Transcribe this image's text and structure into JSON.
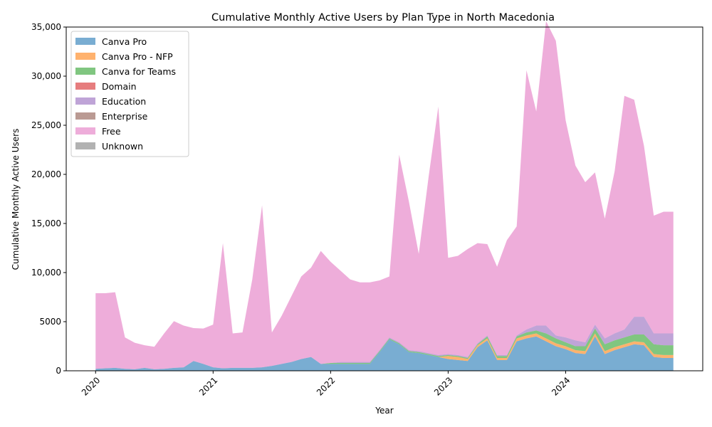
{
  "chart_data": {
    "type": "area",
    "stacked": true,
    "title": "Cumulative Monthly Active Users by Plan Type in North Macedonia",
    "xlabel": "Year",
    "ylabel": "Cumulative Monthly Active Users",
    "ylim": [
      0,
      35000
    ],
    "y_ticks": [
      0,
      5000,
      10000,
      15000,
      20000,
      25000,
      30000,
      35000
    ],
    "y_tick_labels": [
      "0",
      "5000",
      "10,000",
      "15,000",
      "20,000",
      "25,000",
      "30,000",
      "35,000"
    ],
    "x_ticks": [
      "2020-01",
      "2021-01",
      "2022-01",
      "2023-01",
      "2024-01"
    ],
    "x_tick_labels": [
      "2020",
      "2021",
      "2022",
      "2023",
      "2024"
    ],
    "xlim": [
      "2019-10",
      "2025-03"
    ],
    "legend_position": "upper-left",
    "grid": false,
    "x": [
      "2020-01",
      "2020-02",
      "2020-03",
      "2020-04",
      "2020-05",
      "2020-06",
      "2020-07",
      "2020-08",
      "2020-09",
      "2020-10",
      "2020-11",
      "2020-12",
      "2021-01",
      "2021-02",
      "2021-03",
      "2021-04",
      "2021-05",
      "2021-06",
      "2021-07",
      "2021-08",
      "2021-09",
      "2021-10",
      "2021-11",
      "2021-12",
      "2022-01",
      "2022-02",
      "2022-03",
      "2022-04",
      "2022-05",
      "2022-06",
      "2022-07",
      "2022-08",
      "2022-09",
      "2022-10",
      "2022-11",
      "2022-12",
      "2023-01",
      "2023-02",
      "2023-03",
      "2023-04",
      "2023-05",
      "2023-06",
      "2023-07",
      "2023-08",
      "2023-09",
      "2023-10",
      "2023-11",
      "2023-12",
      "2024-01",
      "2024-02",
      "2024-03",
      "2024-04",
      "2024-05",
      "2024-06",
      "2024-07",
      "2024-08",
      "2024-09",
      "2024-10",
      "2024-11",
      "2024-12"
    ],
    "series": [
      {
        "name": "Canva Pro",
        "color": "#1f77b4",
        "values": [
          200,
          250,
          300,
          200,
          150,
          300,
          150,
          200,
          300,
          350,
          1000,
          700,
          350,
          250,
          300,
          300,
          300,
          350,
          500,
          700,
          900,
          1200,
          1400,
          700,
          700,
          700,
          700,
          700,
          700,
          1900,
          3200,
          2700,
          1900,
          1800,
          1600,
          1400,
          1200,
          1100,
          1000,
          2400,
          3100,
          1100,
          1100,
          3000,
          3300,
          3500,
          3000,
          2500,
          2200,
          1800,
          1700,
          3500,
          1700,
          2100,
          2400,
          2700,
          2600,
          1400,
          1300,
          1300
        ]
      },
      {
        "name": "Canva Pro - NFP",
        "color": "#ff7f0e",
        "values": [
          0,
          0,
          0,
          0,
          0,
          0,
          0,
          0,
          0,
          0,
          0,
          0,
          0,
          0,
          0,
          0,
          0,
          0,
          0,
          0,
          0,
          0,
          0,
          0,
          0,
          0,
          0,
          0,
          0,
          0,
          0,
          0,
          0,
          0,
          0,
          0,
          300,
          300,
          200,
          200,
          200,
          200,
          200,
          300,
          300,
          300,
          300,
          300,
          300,
          300,
          300,
          300,
          300,
          300,
          300,
          300,
          300,
          300,
          300,
          300
        ]
      },
      {
        "name": "Canva for Teams",
        "color": "#2ca02c",
        "values": [
          0,
          0,
          0,
          0,
          0,
          0,
          0,
          0,
          0,
          0,
          0,
          0,
          0,
          0,
          0,
          0,
          0,
          0,
          0,
          0,
          0,
          0,
          0,
          0,
          100,
          100,
          100,
          100,
          100,
          100,
          100,
          100,
          100,
          100,
          100,
          100,
          100,
          100,
          100,
          100,
          200,
          200,
          200,
          200,
          300,
          300,
          500,
          500,
          400,
          400,
          500,
          500,
          700,
          700,
          700,
          700,
          800,
          1000,
          1000,
          1000
        ]
      },
      {
        "name": "Domain",
        "color": "#d62728",
        "values": [
          0,
          0,
          0,
          0,
          0,
          0,
          0,
          0,
          0,
          0,
          0,
          0,
          0,
          0,
          0,
          0,
          0,
          0,
          0,
          0,
          0,
          0,
          0,
          0,
          0,
          0,
          0,
          0,
          0,
          0,
          0,
          0,
          0,
          0,
          0,
          0,
          0,
          0,
          0,
          0,
          0,
          0,
          0,
          0,
          0,
          0,
          0,
          0,
          0,
          0,
          0,
          0,
          0,
          0,
          0,
          0,
          0,
          0,
          0,
          0
        ]
      },
      {
        "name": "Education",
        "color": "#9467bd",
        "values": [
          0,
          0,
          0,
          0,
          0,
          0,
          0,
          0,
          0,
          0,
          0,
          0,
          0,
          0,
          0,
          0,
          0,
          0,
          0,
          0,
          0,
          0,
          0,
          0,
          0,
          100,
          100,
          100,
          100,
          100,
          100,
          100,
          100,
          100,
          100,
          100,
          100,
          100,
          100,
          100,
          100,
          100,
          100,
          100,
          300,
          500,
          800,
          300,
          500,
          600,
          400,
          400,
          600,
          700,
          800,
          1800,
          1800,
          1100,
          1200,
          1200
        ]
      },
      {
        "name": "Enterprise",
        "color": "#8c564b",
        "values": [
          0,
          0,
          0,
          0,
          0,
          0,
          0,
          0,
          0,
          0,
          0,
          0,
          0,
          0,
          0,
          0,
          0,
          0,
          0,
          0,
          0,
          0,
          0,
          0,
          0,
          0,
          0,
          0,
          0,
          0,
          0,
          0,
          0,
          0,
          0,
          0,
          0,
          0,
          0,
          0,
          0,
          0,
          0,
          0,
          0,
          0,
          0,
          0,
          0,
          0,
          0,
          0,
          0,
          0,
          0,
          0,
          0,
          0,
          0,
          0
        ]
      },
      {
        "name": "Free",
        "color": "#e377c2",
        "values": [
          7700,
          7650,
          7700,
          3200,
          2700,
          2300,
          2300,
          3600,
          4750,
          4250,
          3350,
          3600,
          4350,
          12750,
          3500,
          3600,
          9000,
          16500,
          3400,
          4900,
          6700,
          8400,
          9100,
          11500,
          10300,
          9300,
          8400,
          8100,
          8100,
          7100,
          6200,
          19100,
          15100,
          9900,
          17900,
          25300,
          9800,
          10100,
          11000,
          10200,
          9300,
          9000,
          11700,
          11100,
          26400,
          21800,
          31000,
          30000,
          22100,
          17800,
          16300,
          15500,
          12200,
          16500,
          23800,
          22100,
          17400,
          12000,
          12400,
          12400
        ]
      },
      {
        "name": "Unknown",
        "color": "#7f7f7f",
        "values": [
          0,
          0,
          0,
          0,
          0,
          0,
          0,
          0,
          0,
          0,
          0,
          0,
          0,
          0,
          0,
          0,
          0,
          0,
          0,
          0,
          0,
          0,
          0,
          0,
          0,
          0,
          0,
          0,
          0,
          0,
          0,
          0,
          0,
          0,
          0,
          0,
          0,
          0,
          0,
          0,
          0,
          0,
          0,
          0,
          0,
          0,
          0,
          0,
          0,
          0,
          0,
          0,
          0,
          0,
          0,
          0,
          0,
          0,
          0,
          0
        ]
      }
    ]
  }
}
